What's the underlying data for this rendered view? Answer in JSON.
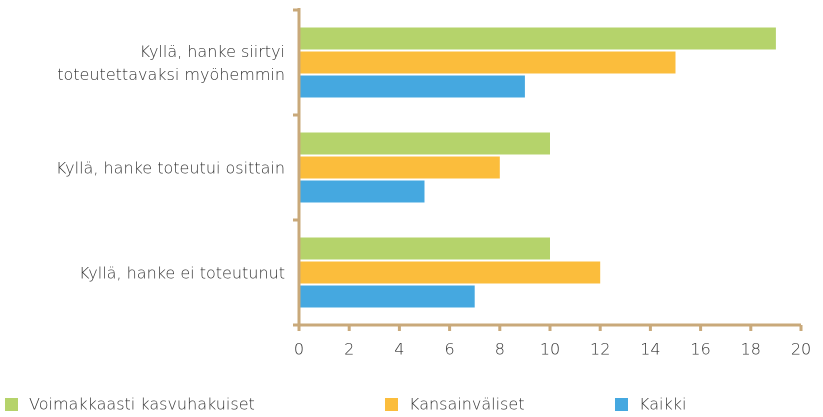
{
  "chart_data": {
    "type": "hbar",
    "categories": [
      "Kyllä, hanke siirtyi\ntoteutettavaksi myöhemmin",
      "Kyllä, hanke toteutui osittain",
      "Kyllä, hanke ei toteutunut"
    ],
    "series": [
      {
        "name": "Voimakkaasti kasvuhakuiset",
        "color": "#b5d36b",
        "values": [
          19,
          10,
          10
        ]
      },
      {
        "name": "Kansainväliset",
        "color": "#fbbd3c",
        "values": [
          15,
          8,
          12
        ]
      },
      {
        "name": "Kaikki",
        "color": "#45a8e0",
        "values": [
          9,
          5,
          7
        ]
      }
    ],
    "xlim": [
      0,
      20
    ],
    "xticks": [
      0,
      2,
      4,
      6,
      8,
      10,
      12,
      14,
      16,
      18,
      20
    ],
    "legend": "bottom"
  }
}
